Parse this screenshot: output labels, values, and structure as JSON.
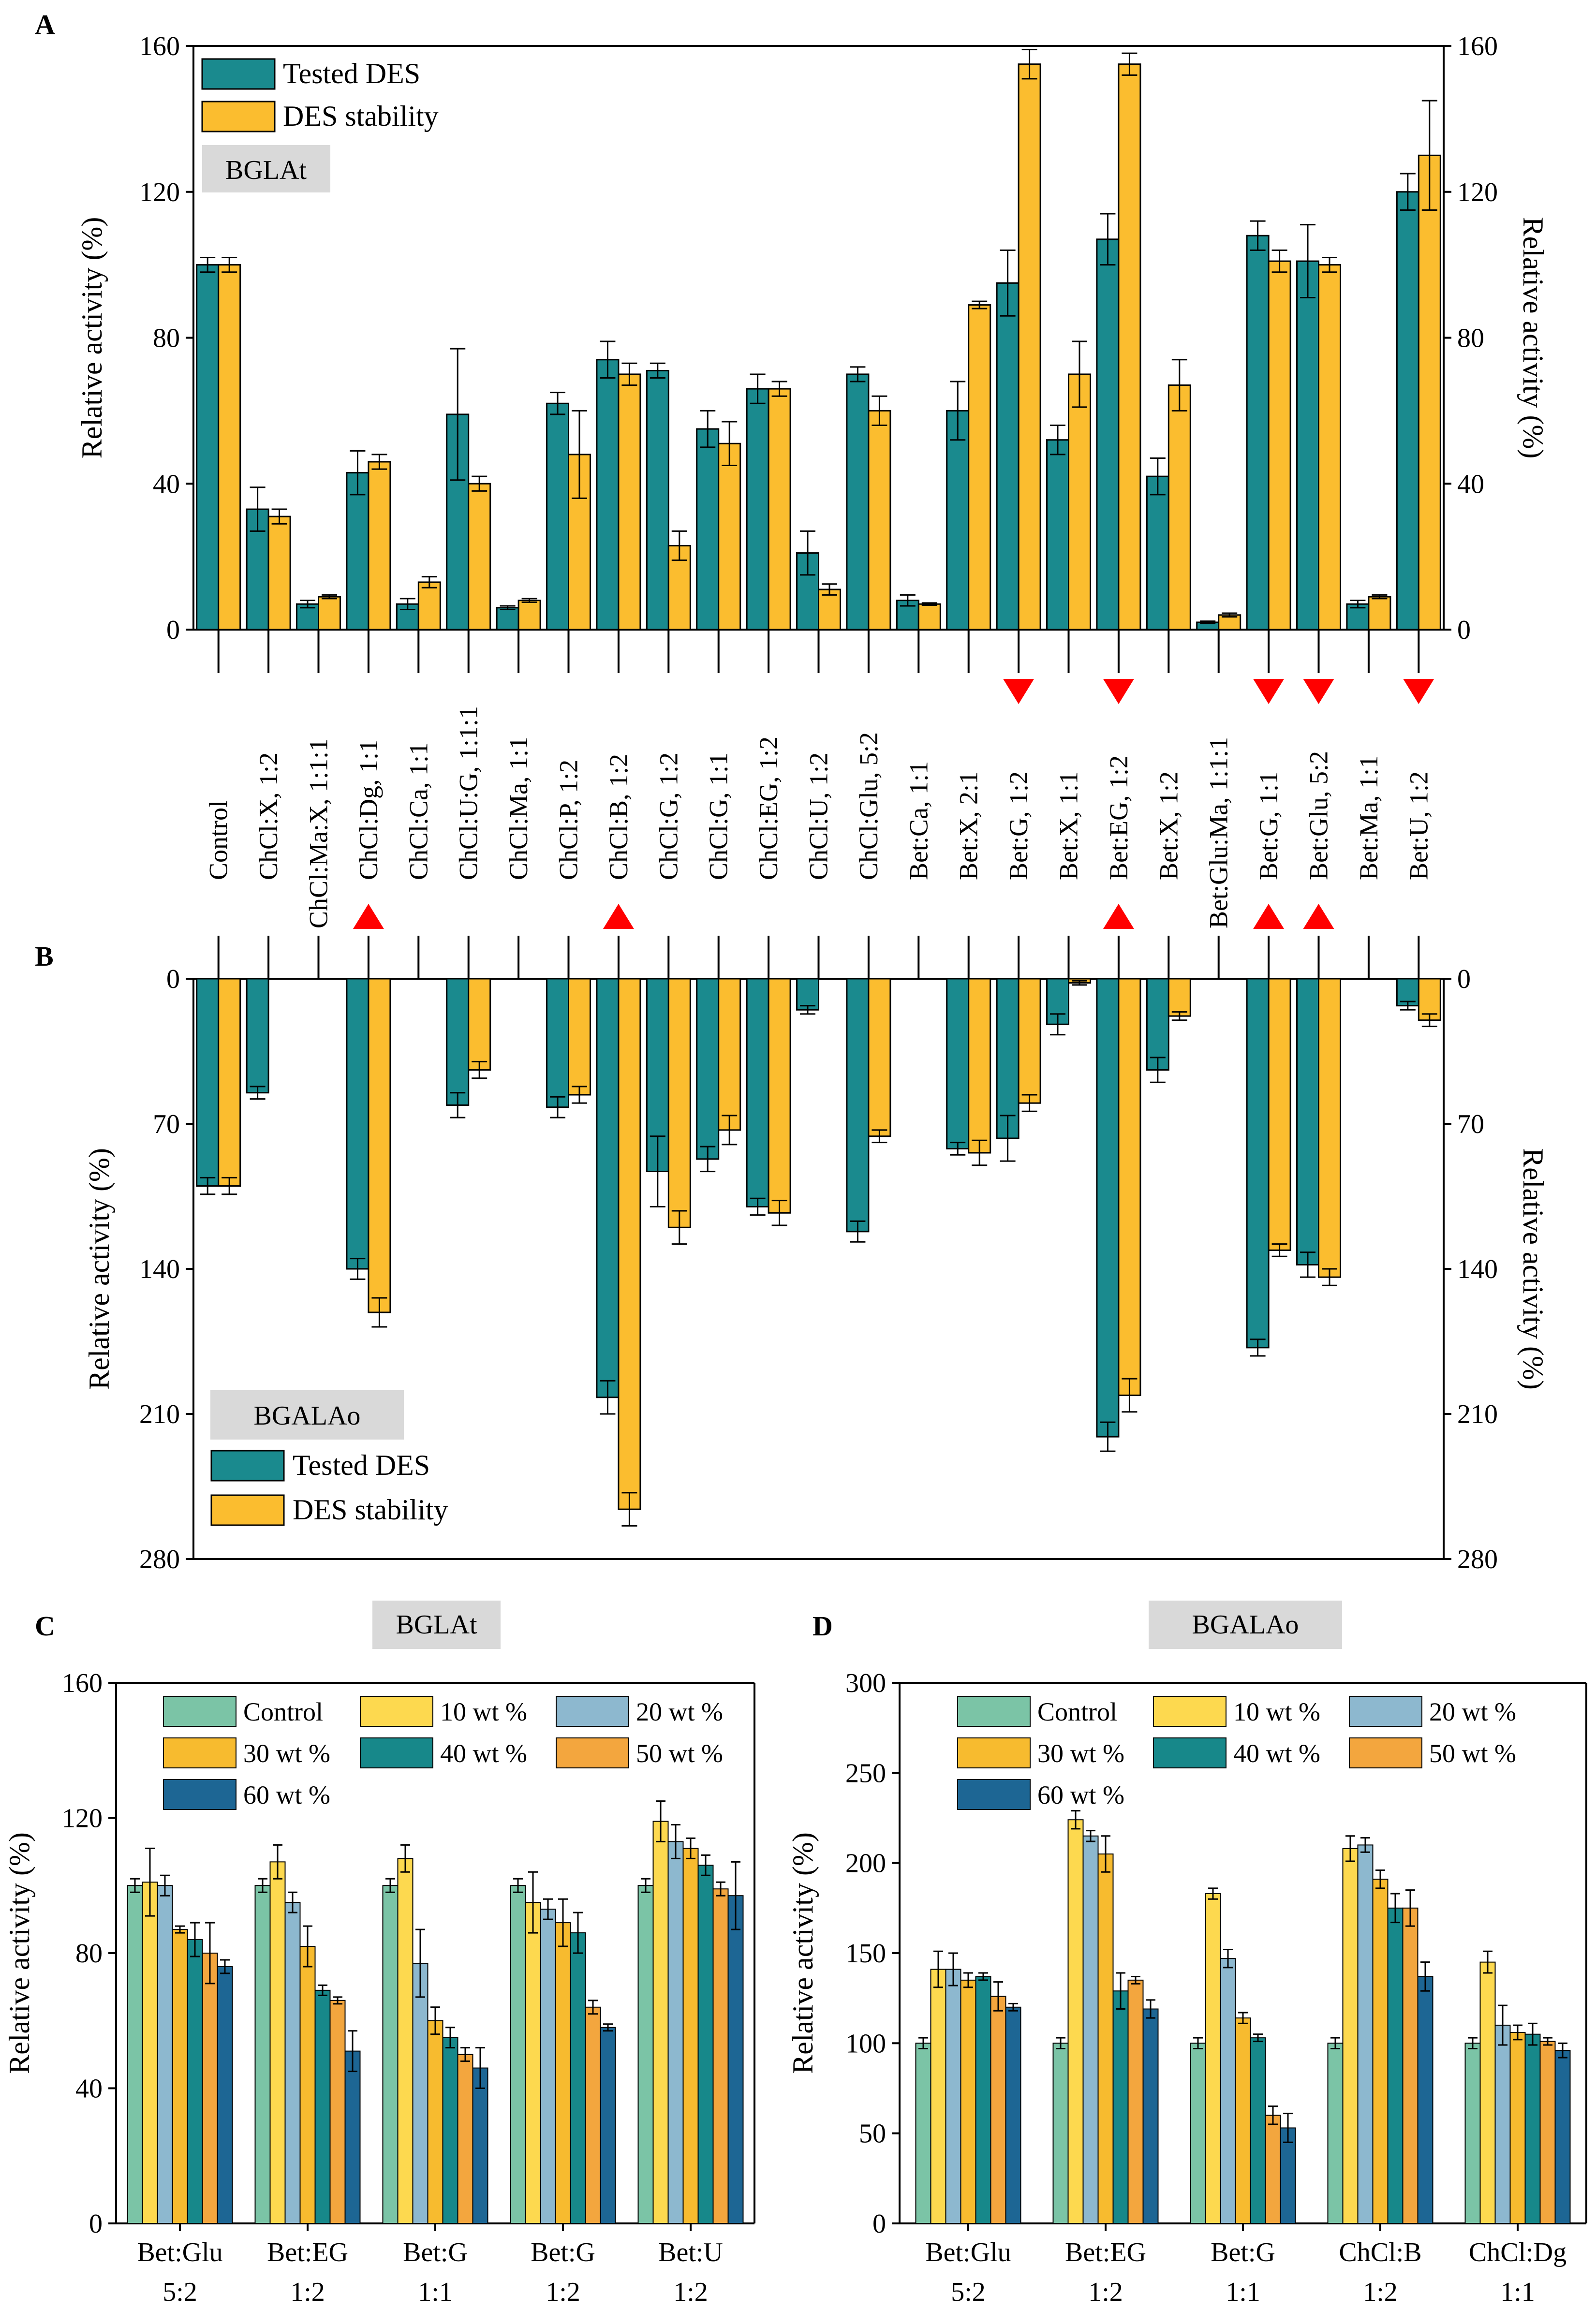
{
  "panel_labels": [
    "A",
    "B",
    "C",
    "D"
  ],
  "colors": {
    "tested": "#1a8a8e",
    "stability": "#fbbd2f",
    "arrow": "#ff0000",
    "enzyme_box": "#d9d9d9",
    "conc": [
      "#7bc4a6",
      "#fdd94f",
      "#8db8cf",
      "#f7bb2f",
      "#17888a",
      "#f3a63e",
      "#1d6694"
    ]
  },
  "chart_data": [
    {
      "panel": "A",
      "type": "bar",
      "enzyme": "BGLAt",
      "categories": [
        "Control",
        "ChCl:X, 1:2",
        "ChCl:Ma:X, 1:1:1",
        "ChCl:Dg, 1:1",
        "ChCl:Ca, 1:1",
        "ChCl:U:G, 1:1:1",
        "ChCl:Ma, 1:1",
        "ChCl:P, 1:2",
        "ChCl:B, 1:2",
        "ChCl:G, 1:2",
        "ChCl:G, 1:1",
        "ChCl:EG, 1:2",
        "ChCl:U, 1:2",
        "ChCl:Glu, 5:2",
        "Bet:Ca, 1:1",
        "Bet:X, 2:1",
        "Bet:G, 1:2",
        "Bet:X, 1:1",
        "Bet:EG, 1:2",
        "Bet:X, 1:2",
        "Bet:Glu:Ma, 1:1:1",
        "Bet:G, 1:1",
        "Bet:Glu, 5:2",
        "Bet:Ma, 1:1",
        "Bet:U, 1:2"
      ],
      "series": [
        {
          "name": "Tested DES",
          "values": [
            100,
            33,
            7,
            43,
            7,
            59,
            6,
            62,
            74,
            71,
            55,
            66,
            21,
            70,
            8,
            60,
            95,
            52,
            107,
            42,
            2,
            108,
            101,
            7,
            120
          ],
          "errors": [
            2,
            6,
            1,
            6,
            1.5,
            18,
            0.5,
            3,
            5,
            2,
            5,
            4,
            6,
            2,
            1.5,
            8,
            9,
            4,
            7,
            5,
            0.3,
            4,
            10,
            1,
            5
          ]
        },
        {
          "name": "DES stability",
          "values": [
            100,
            31,
            9,
            46,
            13,
            40,
            8,
            48,
            70,
            23,
            51,
            66,
            11,
            60,
            7,
            89,
            155,
            70,
            155,
            67,
            4,
            101,
            100,
            9,
            130
          ],
          "errors": [
            2,
            2,
            0.5,
            2,
            1.5,
            2,
            0.5,
            12,
            3,
            4,
            6,
            2,
            1.5,
            4,
            0.3,
            1,
            4,
            9,
            3,
            7,
            0.5,
            3,
            2,
            0.5,
            15
          ]
        }
      ],
      "ylim": [
        0,
        160
      ],
      "yticks": [
        0,
        40,
        80,
        120,
        160
      ],
      "ylabel": "Relative activity (%)",
      "ylabel_right": "Relative activity (%)",
      "legend": [
        "Tested DES",
        "DES stability"
      ],
      "arrows_down": [
        "Bet:G, 1:2",
        "Bet:EG, 1:2",
        "Bet:G, 1:1",
        "Bet:Glu, 5:2",
        "Bet:U, 1:2"
      ],
      "arrows_up": [
        "ChCl:Dg, 1:1",
        "ChCl:B, 1:2",
        "Bet:EG, 1:2",
        "Bet:G, 1:1",
        "Bet:Glu, 5:2"
      ]
    },
    {
      "panel": "B",
      "type": "bar",
      "enzyme": "BGALAo",
      "series": [
        {
          "name": "Tested DES",
          "values": [
            100,
            55,
            0,
            140,
            0,
            61,
            0,
            62,
            202,
            93,
            87,
            110,
            15,
            122,
            0,
            82,
            77,
            22,
            221,
            44,
            0,
            178,
            138,
            0,
            13
          ],
          "errors": [
            4,
            3,
            0,
            5,
            0,
            6,
            0,
            5,
            8,
            17,
            6,
            4,
            2,
            5,
            0,
            3,
            11,
            5,
            7,
            6,
            0,
            4,
            6,
            0,
            2
          ]
        },
        {
          "name": "DES stability",
          "values": [
            100,
            0,
            0,
            161,
            0,
            44,
            0,
            56,
            256,
            120,
            73,
            113,
            0,
            76,
            0,
            84,
            60,
            2,
            201,
            18,
            0,
            131,
            144,
            0,
            20
          ],
          "errors": [
            4,
            0,
            0,
            7,
            0,
            4,
            0,
            4,
            8,
            8,
            7,
            6,
            0,
            3,
            0,
            6,
            4,
            1,
            8,
            2,
            0,
            3,
            4,
            0,
            3
          ]
        }
      ],
      "ylim": [
        0,
        280
      ],
      "yticks": [
        0,
        70,
        140,
        210,
        280
      ],
      "ylabel": "Relative activity (%)",
      "ylabel_right": "Relative activity (%)",
      "legend": [
        "Tested DES",
        "DES stability"
      ],
      "orientation": "downward"
    },
    {
      "panel": "C",
      "type": "bar",
      "enzyme": "BGLAt",
      "groups": [
        [
          "Bet:Glu",
          "5:2"
        ],
        [
          "Bet:EG",
          "1:2"
        ],
        [
          "Bet:G",
          "1:1"
        ],
        [
          "Bet:G",
          "1:2"
        ],
        [
          "Bet:U",
          "1:2"
        ]
      ],
      "series": [
        {
          "name": "Control",
          "values": [
            100,
            100,
            100,
            100,
            100
          ],
          "errors": [
            2,
            2,
            2,
            2,
            2
          ]
        },
        {
          "name": "10 wt %",
          "values": [
            101,
            107,
            108,
            95,
            119
          ]
        },
        {
          "name": "20 wt %",
          "values": [
            100,
            95,
            77,
            93,
            113
          ]
        },
        {
          "name": "30 wt %",
          "values": [
            87,
            82,
            60,
            89,
            111
          ]
        },
        {
          "name": "40 wt %",
          "values": [
            84,
            69,
            55,
            86,
            106
          ]
        },
        {
          "name": "50 wt %",
          "values": [
            80,
            66,
            50,
            64,
            99
          ]
        },
        {
          "name": "60 wt %",
          "values": [
            76,
            51,
            46,
            58,
            97
          ]
        }
      ],
      "errors": [
        [
          2,
          10,
          3,
          1,
          5,
          9,
          2
        ],
        [
          2,
          5,
          3,
          6,
          1.5,
          1,
          6
        ],
        [
          2,
          4,
          10,
          4,
          3,
          2,
          6
        ],
        [
          2,
          9,
          3,
          7,
          6,
          2,
          1
        ],
        [
          2,
          6,
          5,
          3,
          3,
          2,
          10
        ]
      ],
      "ylim": [
        0,
        160
      ],
      "yticks": [
        0,
        40,
        80,
        120,
        160
      ],
      "ylabel": "Relative activity (%)",
      "legend": [
        "Control",
        "10 wt %",
        "20 wt %",
        "30 wt %",
        "40 wt %",
        "50 wt %",
        "60 wt %"
      ]
    },
    {
      "panel": "D",
      "type": "bar",
      "enzyme": "BGALAo",
      "groups": [
        [
          "Bet:Glu",
          "5:2"
        ],
        [
          "Bet:EG",
          "1:2"
        ],
        [
          "Bet:G",
          "1:1"
        ],
        [
          "ChCl:B",
          "1:2"
        ],
        [
          "ChCl:Dg",
          "1:1"
        ]
      ],
      "series": [
        {
          "name": "Control",
          "values": [
            100,
            100,
            100,
            100,
            100
          ]
        },
        {
          "name": "10 wt %",
          "values": [
            141,
            224,
            183,
            208,
            145
          ]
        },
        {
          "name": "20 wt %",
          "values": [
            141,
            215,
            147,
            210,
            110
          ]
        },
        {
          "name": "30 wt %",
          "values": [
            135,
            205,
            114,
            191,
            106
          ]
        },
        {
          "name": "40 wt %",
          "values": [
            137,
            129,
            103,
            175,
            105
          ]
        },
        {
          "name": "50 wt %",
          "values": [
            126,
            135,
            60,
            175,
            101
          ]
        },
        {
          "name": "60 wt %",
          "values": [
            120,
            119,
            53,
            137,
            96
          ]
        }
      ],
      "errors": [
        [
          3,
          10,
          9,
          4,
          2,
          8,
          2
        ],
        [
          3,
          5,
          3,
          10,
          10,
          2,
          5
        ],
        [
          3,
          3,
          5,
          3,
          2,
          5,
          8
        ],
        [
          3,
          7,
          4,
          5,
          8,
          10,
          8
        ],
        [
          3,
          6,
          11,
          4,
          6,
          2,
          4
        ]
      ],
      "ylim": [
        0,
        300
      ],
      "yticks": [
        0,
        50,
        100,
        150,
        200,
        250,
        300
      ],
      "ylabel": "Relative activity (%)",
      "legend": [
        "Control",
        "10 wt %",
        "20 wt %",
        "30 wt %",
        "40 wt %",
        "50 wt %",
        "60 wt %"
      ]
    }
  ]
}
